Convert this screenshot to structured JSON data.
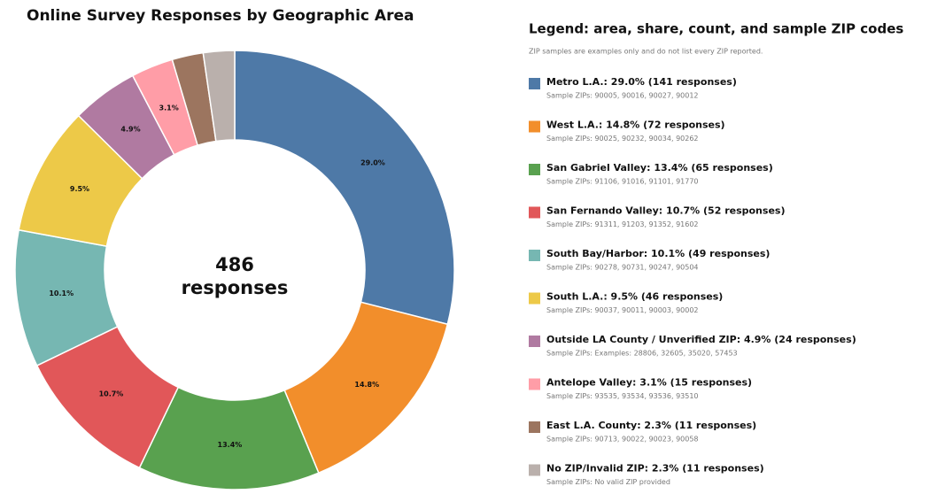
{
  "chart_data": {
    "type": "donut",
    "title": "Online Survey Responses by Geographic Area",
    "values": [
      29.0,
      14.8,
      13.4,
      10.7,
      10.1,
      9.5,
      4.9,
      3.1,
      2.3,
      2.3
    ],
    "value_labels": [
      "29.0%",
      "14.8%",
      "13.4%",
      "10.7%",
      "10.1%",
      "9.5%",
      "4.9%",
      "3.1%",
      null,
      null
    ],
    "colors": [
      "#4e79a7",
      "#f28e2b",
      "#59a14f",
      "#e15759",
      "#76b7b2",
      "#edc948",
      "#b07aa1",
      "#ff9da7",
      "#9c755f",
      "#bab0ac"
    ],
    "center_total": 486,
    "center_unit": "responses",
    "legend_title": "Legend: area, share, count, and sample ZIP codes",
    "legend_note": "ZIP samples are examples only and do not list every ZIP reported.",
    "legend": [
      {
        "label": "Metro L.A.: 29.0% (141 responses)",
        "zips": "Sample ZIPs: 90005, 90016, 90027, 90012"
      },
      {
        "label": "West L.A.: 14.8% (72 responses)",
        "zips": "Sample ZIPs: 90025, 90232, 90034, 90262"
      },
      {
        "label": "San Gabriel Valley: 13.4% (65 responses)",
        "zips": "Sample ZIPs: 91106, 91016, 91101, 91770"
      },
      {
        "label": "San Fernando Valley: 10.7% (52 responses)",
        "zips": "Sample ZIPs: 91311, 91203, 91352, 91602"
      },
      {
        "label": "South Bay/Harbor: 10.1% (49 responses)",
        "zips": "Sample ZIPs: 90278, 90731, 90247, 90504"
      },
      {
        "label": "South L.A.: 9.5% (46 responses)",
        "zips": "Sample ZIPs: 90037, 90011, 90003, 90002"
      },
      {
        "label": "Outside LA County / Unverified ZIP: 4.9% (24 responses)",
        "zips": "Sample ZIPs: Examples: 28806, 32605, 35020, 57453"
      },
      {
        "label": "Antelope Valley: 3.1% (15 responses)",
        "zips": "Sample ZIPs: 93535, 93534, 93536, 93510"
      },
      {
        "label": "East L.A. County: 2.3% (11 responses)",
        "zips": "Sample ZIPs: 90713, 90022, 90023, 90058"
      },
      {
        "label": "No ZIP/Invalid ZIP: 2.3% (11 responses)",
        "zips": "Sample ZIPs: No valid ZIP provided"
      }
    ]
  }
}
